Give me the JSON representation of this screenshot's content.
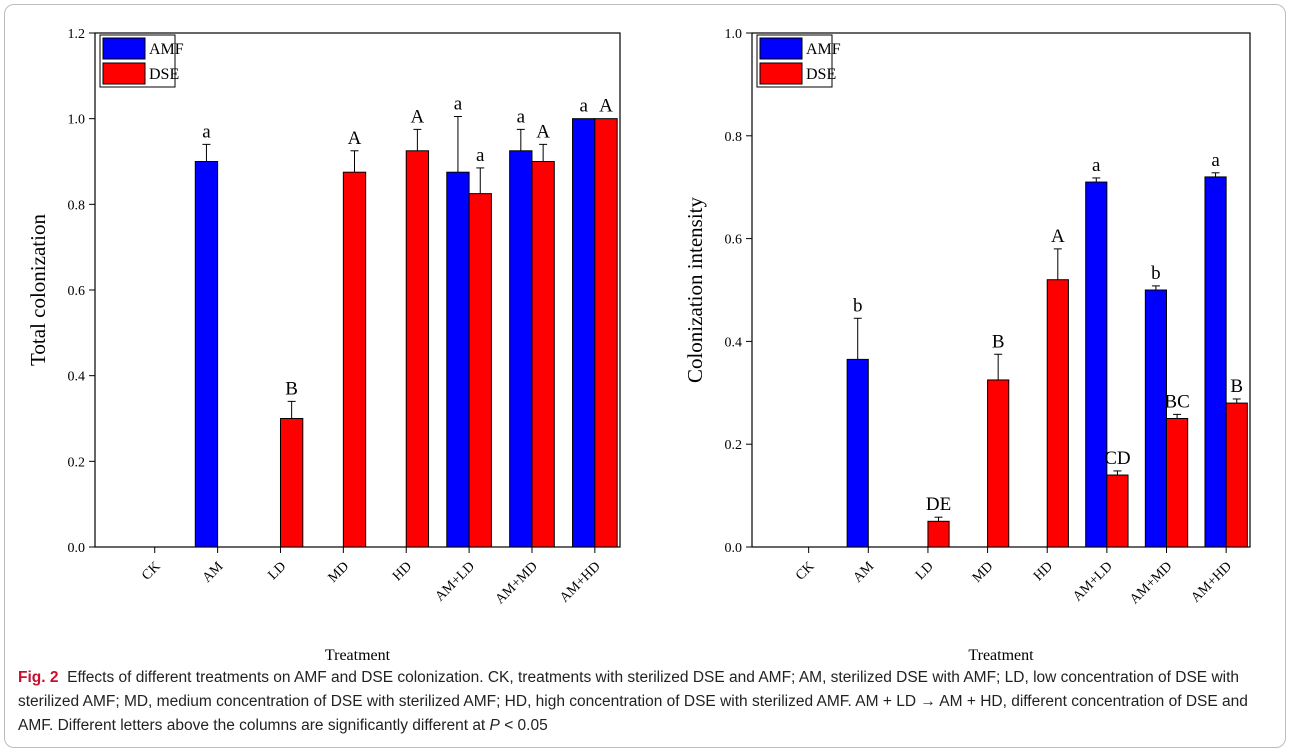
{
  "figure": {
    "caption_label": "Fig. 2",
    "caption_text": "Effects of different treatments on AMF and DSE colonization. CK, treatments with sterilized DSE and AMF; AM, sterilized DSE with AMF; LD, low concentration of DSE with sterilized AMF; MD, medium concentration of DSE with sterilized AMF; HD, high concentration of DSE with sterilized AMF. AM + LD → AM + HD, different concentration of DSE and AMF. Different letters above the columns are significantly different at ",
    "caption_p": "P",
    "caption_tail": " < 0.05"
  },
  "colors": {
    "AMF": "#0000ff",
    "DSE": "#ff0000"
  },
  "chart_data": [
    {
      "type": "bar",
      "title": "",
      "xlabel": "Treatment",
      "ylabel": "Total colonization",
      "ylim": [
        0,
        1.2
      ],
      "yticks": [
        0.0,
        0.2,
        0.4,
        0.6,
        0.8,
        1.0,
        1.2
      ],
      "ytick_labels": [
        "0.0",
        "0.2",
        "0.4",
        "0.6",
        "0.8",
        "1.0",
        "1.2"
      ],
      "legend_position": "top-left",
      "categories": [
        "CK",
        "AM",
        "LD",
        "MD",
        "HD",
        "AM+LD",
        "AM+MD",
        "AM+HD"
      ],
      "series": [
        {
          "name": "AMF",
          "values": [
            0,
            0.9,
            0,
            0,
            0,
            0.875,
            0.925,
            1.0
          ],
          "errors": [
            0,
            0.04,
            0,
            0,
            0,
            0.13,
            0.05,
            0
          ],
          "letters": [
            "",
            "a",
            "",
            "",
            "",
            "a",
            "a",
            "a"
          ]
        },
        {
          "name": "DSE",
          "values": [
            0,
            0,
            0.3,
            0.875,
            0.925,
            0.825,
            0.9,
            1.0
          ],
          "errors": [
            0,
            0,
            0.04,
            0.05,
            0.05,
            0.06,
            0.04,
            0
          ],
          "letters": [
            "",
            "",
            "B",
            "A",
            "A",
            "a",
            "A",
            "A"
          ]
        }
      ]
    },
    {
      "type": "bar",
      "title": "",
      "xlabel": "Treatment",
      "ylabel": "Colonization intensity",
      "ylim": [
        0,
        1.0
      ],
      "yticks": [
        0.0,
        0.2,
        0.4,
        0.6,
        0.8,
        1.0
      ],
      "ytick_labels": [
        "0.0",
        "0.2",
        "0.4",
        "0.6",
        "0.8",
        "1.0"
      ],
      "legend_position": "top-left",
      "categories": [
        "CK",
        "AM",
        "LD",
        "MD",
        "HD",
        "AM+LD",
        "AM+MD",
        "AM+HD"
      ],
      "series": [
        {
          "name": "AMF",
          "values": [
            0,
            0.365,
            0,
            0,
            0,
            0.71,
            0.5,
            0.72
          ],
          "errors": [
            0,
            0.08,
            0,
            0,
            0,
            0.008,
            0.008,
            0.008
          ],
          "letters": [
            "",
            "b",
            "",
            "",
            "",
            "a",
            "b",
            "a"
          ]
        },
        {
          "name": "DSE",
          "values": [
            0,
            0,
            0.05,
            0.325,
            0.52,
            0.14,
            0.25,
            0.28
          ],
          "errors": [
            0,
            0,
            0.008,
            0.05,
            0.06,
            0.008,
            0.008,
            0.008
          ],
          "letters": [
            "",
            "",
            "DE",
            "B",
            "A",
            "CD",
            "BC",
            "B"
          ]
        }
      ]
    }
  ]
}
